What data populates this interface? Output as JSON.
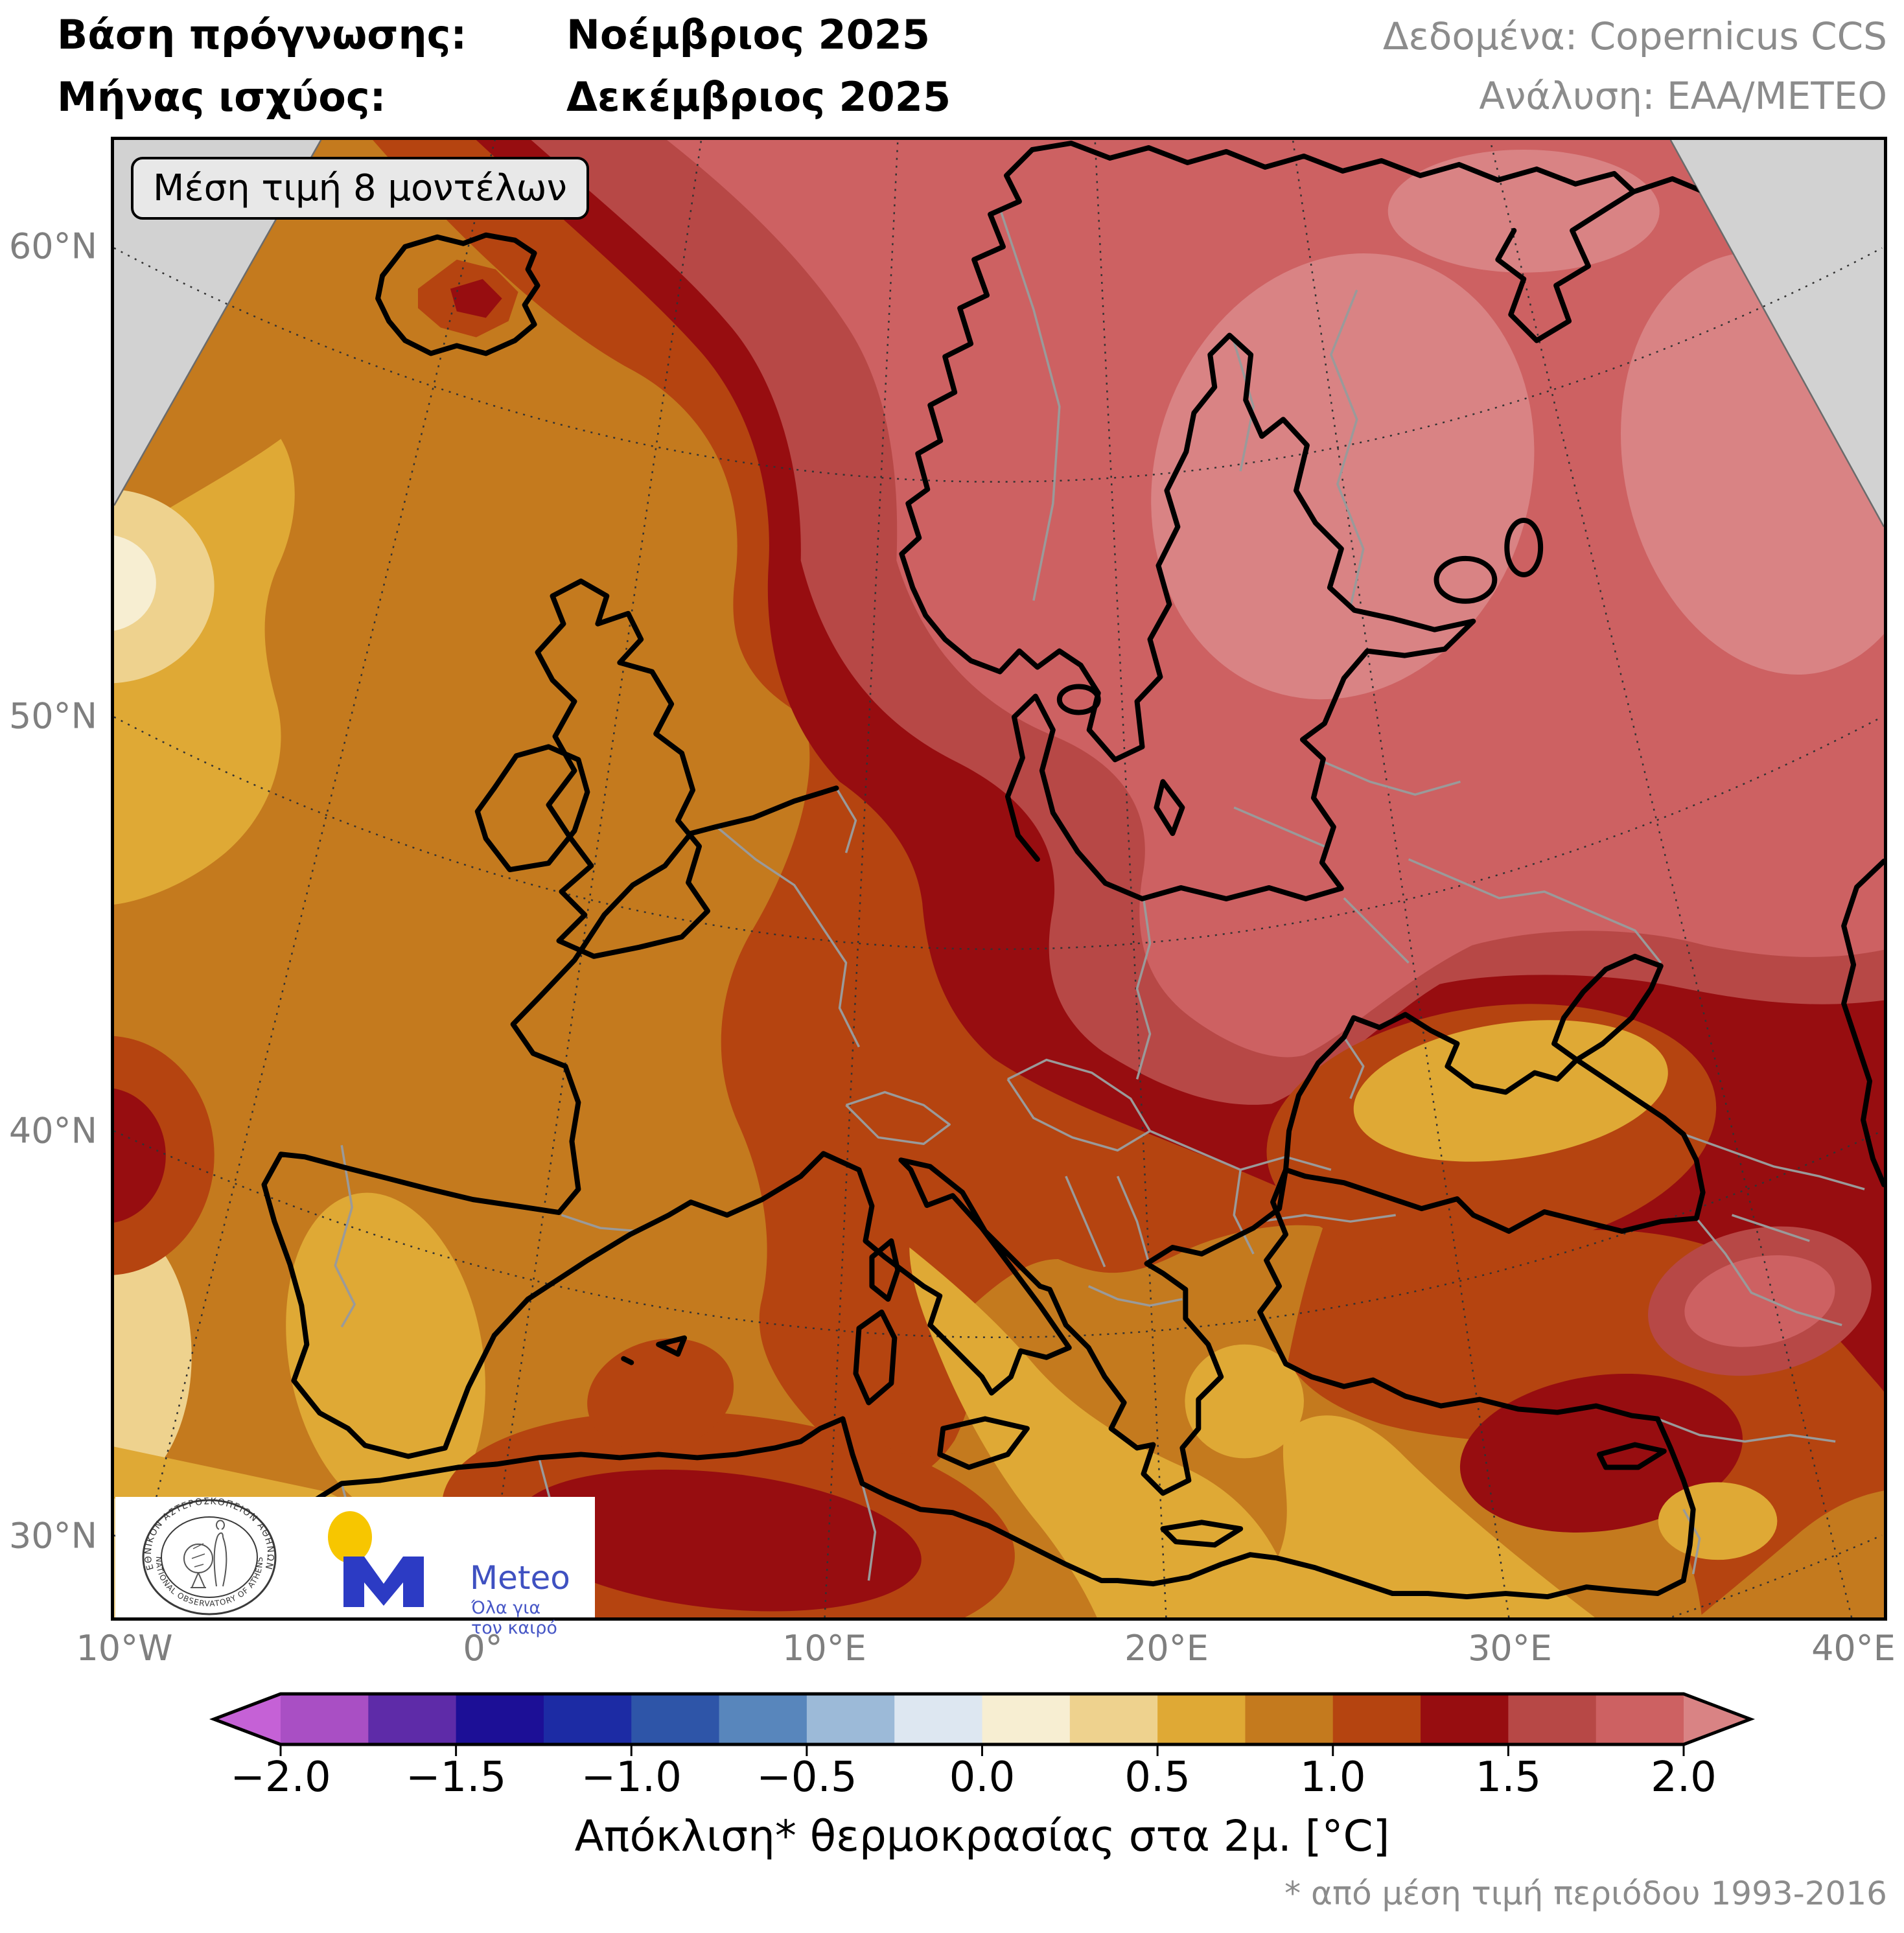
{
  "header": {
    "line1_label": "Βάση πρόγνωσης:",
    "line1_value": "Νοέμβριος 2025",
    "line2_label": "Μήνας ισχύος:",
    "line2_value": "Δεκέμβριος 2025",
    "data_source": "Δεδομένα: Copernicus CCS",
    "analysis": "Ανάλυση: ΕΑΑ/METEO"
  },
  "map": {
    "annotation": "Μέση τιμή 8 μοντέλων",
    "lat_labels": [
      "60°N",
      "50°N",
      "40°N",
      "30°N"
    ],
    "lat_y": [
      380,
      1105,
      1745,
      2370
    ],
    "lon_labels": [
      "10°W",
      "0°",
      "10°E",
      "20°E",
      "30°E",
      "40°E"
    ],
    "lon_x": [
      192,
      745,
      1272,
      1800,
      2330,
      2860
    ]
  },
  "logos": {
    "noa_ring_gr": "ΕΘΝΙΚΟΝ ΑΣΤΕΡΟΣΚΟΠΕΙΟΝ ΑΘΗΝΩΝ",
    "noa_ring_en": "NATIONAL OBSERVATORY OF ATHENS",
    "meteo_name": "Meteo",
    "meteo_tag1": "Όλα για",
    "meteo_tag2": "τον καιρό"
  },
  "colorbar": {
    "title": "Απόκλιση* θερμοκρασίας στα 2μ. [°C]",
    "ticks": [
      "−2.0",
      "−1.5",
      "−1.0",
      "−0.5",
      "0.0",
      "0.5",
      "1.0",
      "1.5",
      "2.0"
    ],
    "segments": [
      "#a94fc4",
      "#5e2ba8",
      "#1c0f96",
      "#1c2ba4",
      "#2e55a8",
      "#5886bc",
      "#9cbad8",
      "#dde7f1",
      "#f7eed2",
      "#eed28e",
      "#dfa935",
      "#c47a1e",
      "#b54410",
      "#970d10",
      "#b74846",
      "#cd6162"
    ],
    "arrow_left": "#c561d6",
    "arrow_right": "#d98384"
  },
  "footnote": "* από μέση τιμή περιόδου 1993-2016",
  "palette": {
    "aL": "#c561d6",
    "s1": "#a94fc4",
    "s2": "#5e2ba8",
    "s3": "#1c0f96",
    "s4": "#1c2ba4",
    "s5": "#2e55a8",
    "s6": "#5886bc",
    "s7": "#9cbad8",
    "s8": "#dde7f1",
    "s9": "#f7eed2",
    "s10": "#eed28e",
    "s11": "#dfa935",
    "s12": "#c47a1e",
    "s13": "#b54410",
    "s14": "#970d10",
    "s15": "#b74846",
    "s16": "#cd6162",
    "aR": "#d98384",
    "nodata": "#d2d2d2",
    "coast": "#000000",
    "border": "#9a9a9a",
    "grid": "#333333",
    "meteo_blue": "#2c3bc4",
    "meteo_yellow": "#f7c600"
  },
  "chart_data": {
    "type": "heatmap",
    "subtype": "filled-contour seasonal forecast map (2m temperature anomaly, Europe)",
    "variable": "Απόκλιση θερμοκρασίας στα 2μ.",
    "units": "°C",
    "baseline_period": "1993-2016",
    "forecast_initialized": "Νοέμβριος 2025",
    "valid_month": "Δεκέμβριος 2025",
    "ensemble": "Μέση τιμή 8 μοντέλων",
    "data_source": "Copernicus CCS",
    "analysis_by": "ΕΑΑ/METEO",
    "colorbar_range": [
      -2.0,
      2.0
    ],
    "contour_interval": 0.25,
    "levels": [
      -2.0,
      -1.75,
      -1.5,
      -1.25,
      -1.0,
      -0.75,
      -0.5,
      -0.25,
      0.0,
      0.25,
      0.5,
      0.75,
      1.0,
      1.25,
      1.5,
      1.75,
      2.0
    ],
    "lon_ticks_deg": [
      -10,
      0,
      10,
      20,
      30,
      40
    ],
    "lat_ticks_deg": [
      30,
      40,
      50,
      60
    ],
    "legend_position": "bottom",
    "grid_on": true,
    "regions": [
      {
        "region": "Φινλανδία / Καρελία / ΒΑ Ρωσία",
        "anomaly_c": "> +2.0"
      },
      {
        "region": "Σκανδιναβία / Βαλτική / δυτική Ρωσία",
        "anomaly_c": "+1.5 … +2.0"
      },
      {
        "region": "Νορβηγικές ακτές / Κεντρική Ευρώπη / Βαλκάνια / Ρουμανία",
        "anomaly_c": "+1.25 … +1.5"
      },
      {
        "region": "Γερμανία / Άλπεις / Ιταλία βόρεια / Τουρκία ΒΑ",
        "anomaly_c": "+1.0 … +1.25"
      },
      {
        "region": "Βρετανία / Γαλλία / Ισπανία / Ελλάδα / Μαύρη Θάλασσα νότια",
        "anomaly_c": "+0.75 … +1.0"
      },
      {
        "region": "ΒΑ Ατλαντικός / Πορτογαλία / Ιόνιο / Αιγαίο / Λιβύη / Μαύρη Θάλασσα βόρεια",
        "anomaly_c": "+0.5 … +0.75"
      },
      {
        "region": "Δυτικός Ατλαντικός (άκρο χάρτη)",
        "anomaly_c": "0.0 … +0.5"
      }
    ]
  }
}
